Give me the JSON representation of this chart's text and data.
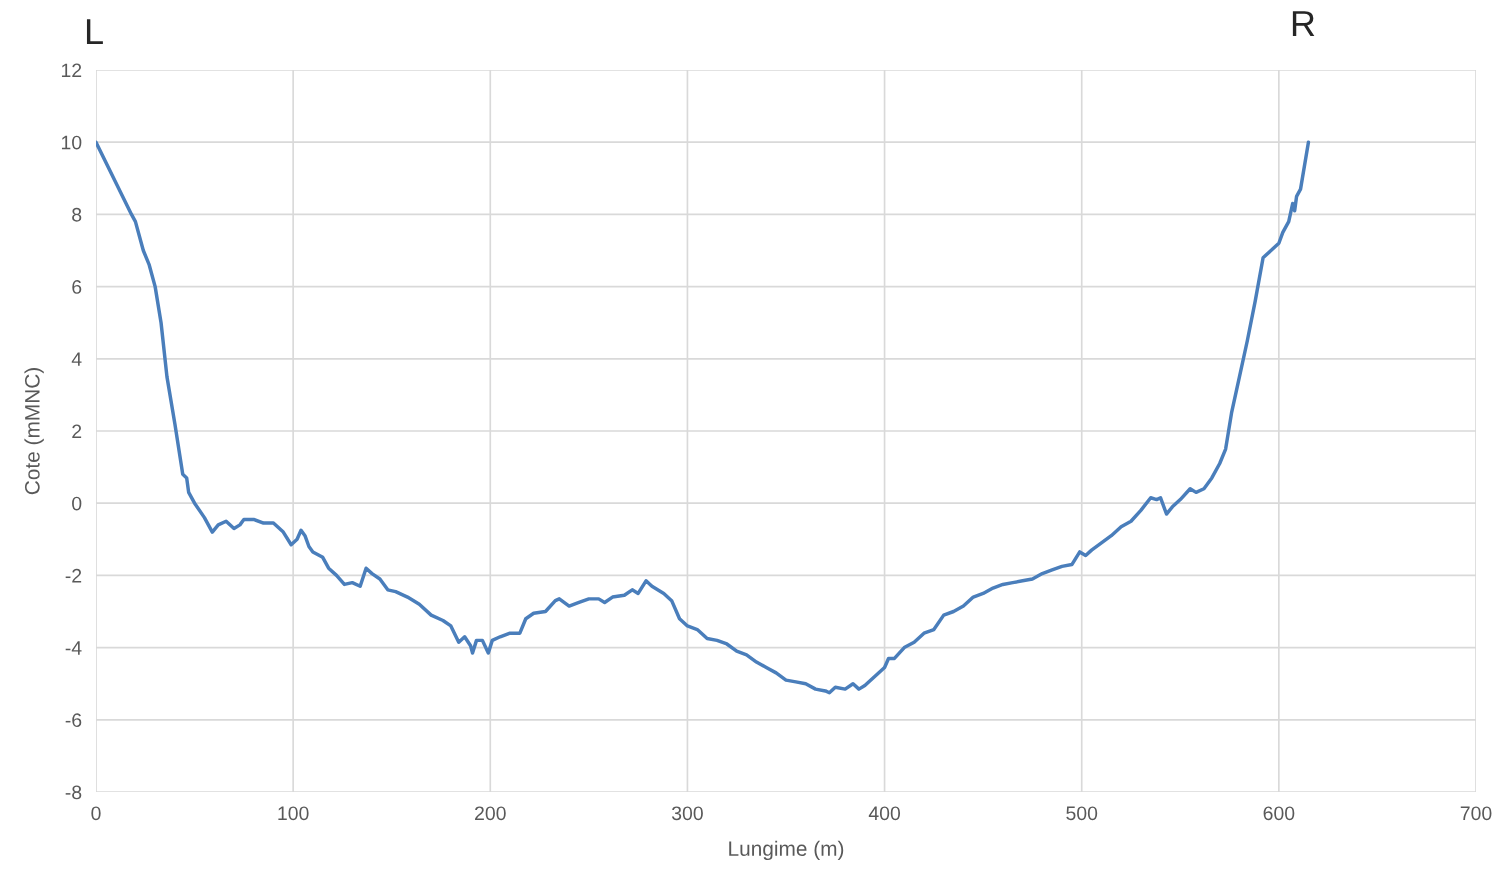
{
  "chart_data": {
    "type": "line",
    "xlabel": "Lungime (m)",
    "ylabel": "Cote (mMNC)",
    "annotations": [
      "L",
      "R"
    ],
    "xlim": [
      0,
      700
    ],
    "xticks": [
      0,
      100,
      200,
      300,
      400,
      500,
      600,
      700
    ],
    "ylim": [
      -8,
      12
    ],
    "yticks": [
      -8,
      -6,
      -4,
      -2,
      0,
      2,
      4,
      6,
      8,
      10,
      12
    ],
    "grid": true,
    "marker": "none",
    "line_style": "solid",
    "series": [
      {
        "color": "#4a7ebb",
        "x": [
          0,
          18,
          20,
          24,
          27,
          30,
          33,
          36,
          40,
          44,
          46,
          47,
          50,
          55,
          59,
          62,
          66,
          70,
          73,
          75,
          80,
          85,
          90,
          95,
          99,
          102,
          104,
          106,
          108,
          110,
          115,
          118,
          122,
          126,
          130,
          134,
          137,
          140,
          144,
          148,
          152,
          158,
          164,
          170,
          176,
          180,
          184,
          187,
          190,
          191,
          193,
          196,
          199,
          201,
          205,
          210,
          215,
          218,
          222,
          228,
          233,
          235,
          240,
          245,
          250,
          255,
          258,
          262,
          268,
          272,
          275,
          279,
          282,
          288,
          292,
          296,
          300,
          305,
          310,
          315,
          320,
          325,
          330,
          335,
          340,
          345,
          350,
          355,
          360,
          365,
          370,
          372,
          375,
          380,
          384,
          387,
          390,
          395,
          400,
          402,
          405,
          410,
          415,
          420,
          425,
          430,
          435,
          440,
          445,
          450,
          455,
          460,
          465,
          470,
          475,
          480,
          485,
          490,
          495,
          499,
          502,
          505,
          510,
          515,
          520,
          525,
          530,
          535,
          538,
          540,
          543,
          546,
          550,
          555,
          558,
          562,
          566,
          570,
          573,
          576,
          580,
          584,
          588,
          592,
          596,
          600,
          602,
          605,
          607,
          608,
          609,
          611,
          615
        ],
        "values": [
          10,
          8.0,
          7.8,
          7.0,
          6.6,
          6.0,
          5.0,
          3.5,
          2.2,
          0.8,
          0.7,
          0.3,
          0.0,
          -0.4,
          -0.8,
          -0.6,
          -0.5,
          -0.7,
          -0.6,
          -0.45,
          -0.45,
          -0.55,
          -0.55,
          -0.8,
          -1.15,
          -1.0,
          -0.75,
          -0.9,
          -1.2,
          -1.35,
          -1.5,
          -1.8,
          -2.0,
          -2.25,
          -2.2,
          -2.3,
          -1.8,
          -1.95,
          -2.1,
          -2.4,
          -2.45,
          -2.6,
          -2.8,
          -3.1,
          -3.25,
          -3.4,
          -3.85,
          -3.7,
          -3.95,
          -4.15,
          -3.8,
          -3.8,
          -4.15,
          -3.8,
          -3.7,
          -3.6,
          -3.6,
          -3.2,
          -3.05,
          -3.0,
          -2.7,
          -2.65,
          -2.85,
          -2.75,
          -2.65,
          -2.65,
          -2.75,
          -2.6,
          -2.55,
          -2.4,
          -2.5,
          -2.15,
          -2.3,
          -2.5,
          -2.7,
          -3.2,
          -3.4,
          -3.5,
          -3.75,
          -3.8,
          -3.9,
          -4.1,
          -4.2,
          -4.4,
          -4.55,
          -4.7,
          -4.9,
          -4.95,
          -5.0,
          -5.15,
          -5.2,
          -5.25,
          -5.1,
          -5.15,
          -5.0,
          -5.15,
          -5.05,
          -4.8,
          -4.55,
          -4.3,
          -4.3,
          -4.0,
          -3.85,
          -3.6,
          -3.5,
          -3.1,
          -3.0,
          -2.85,
          -2.6,
          -2.5,
          -2.35,
          -2.25,
          -2.2,
          -2.15,
          -2.1,
          -1.95,
          -1.85,
          -1.75,
          -1.7,
          -1.35,
          -1.45,
          -1.3,
          -1.1,
          -0.9,
          -0.65,
          -0.5,
          -0.2,
          0.15,
          0.1,
          0.15,
          -0.3,
          -0.1,
          0.1,
          0.4,
          0.3,
          0.4,
          0.7,
          1.1,
          1.5,
          2.5,
          3.5,
          4.5,
          5.6,
          6.8,
          7.0,
          7.2,
          7.5,
          7.8,
          8.3,
          8.1,
          8.5,
          8.7,
          10
        ]
      }
    ]
  }
}
